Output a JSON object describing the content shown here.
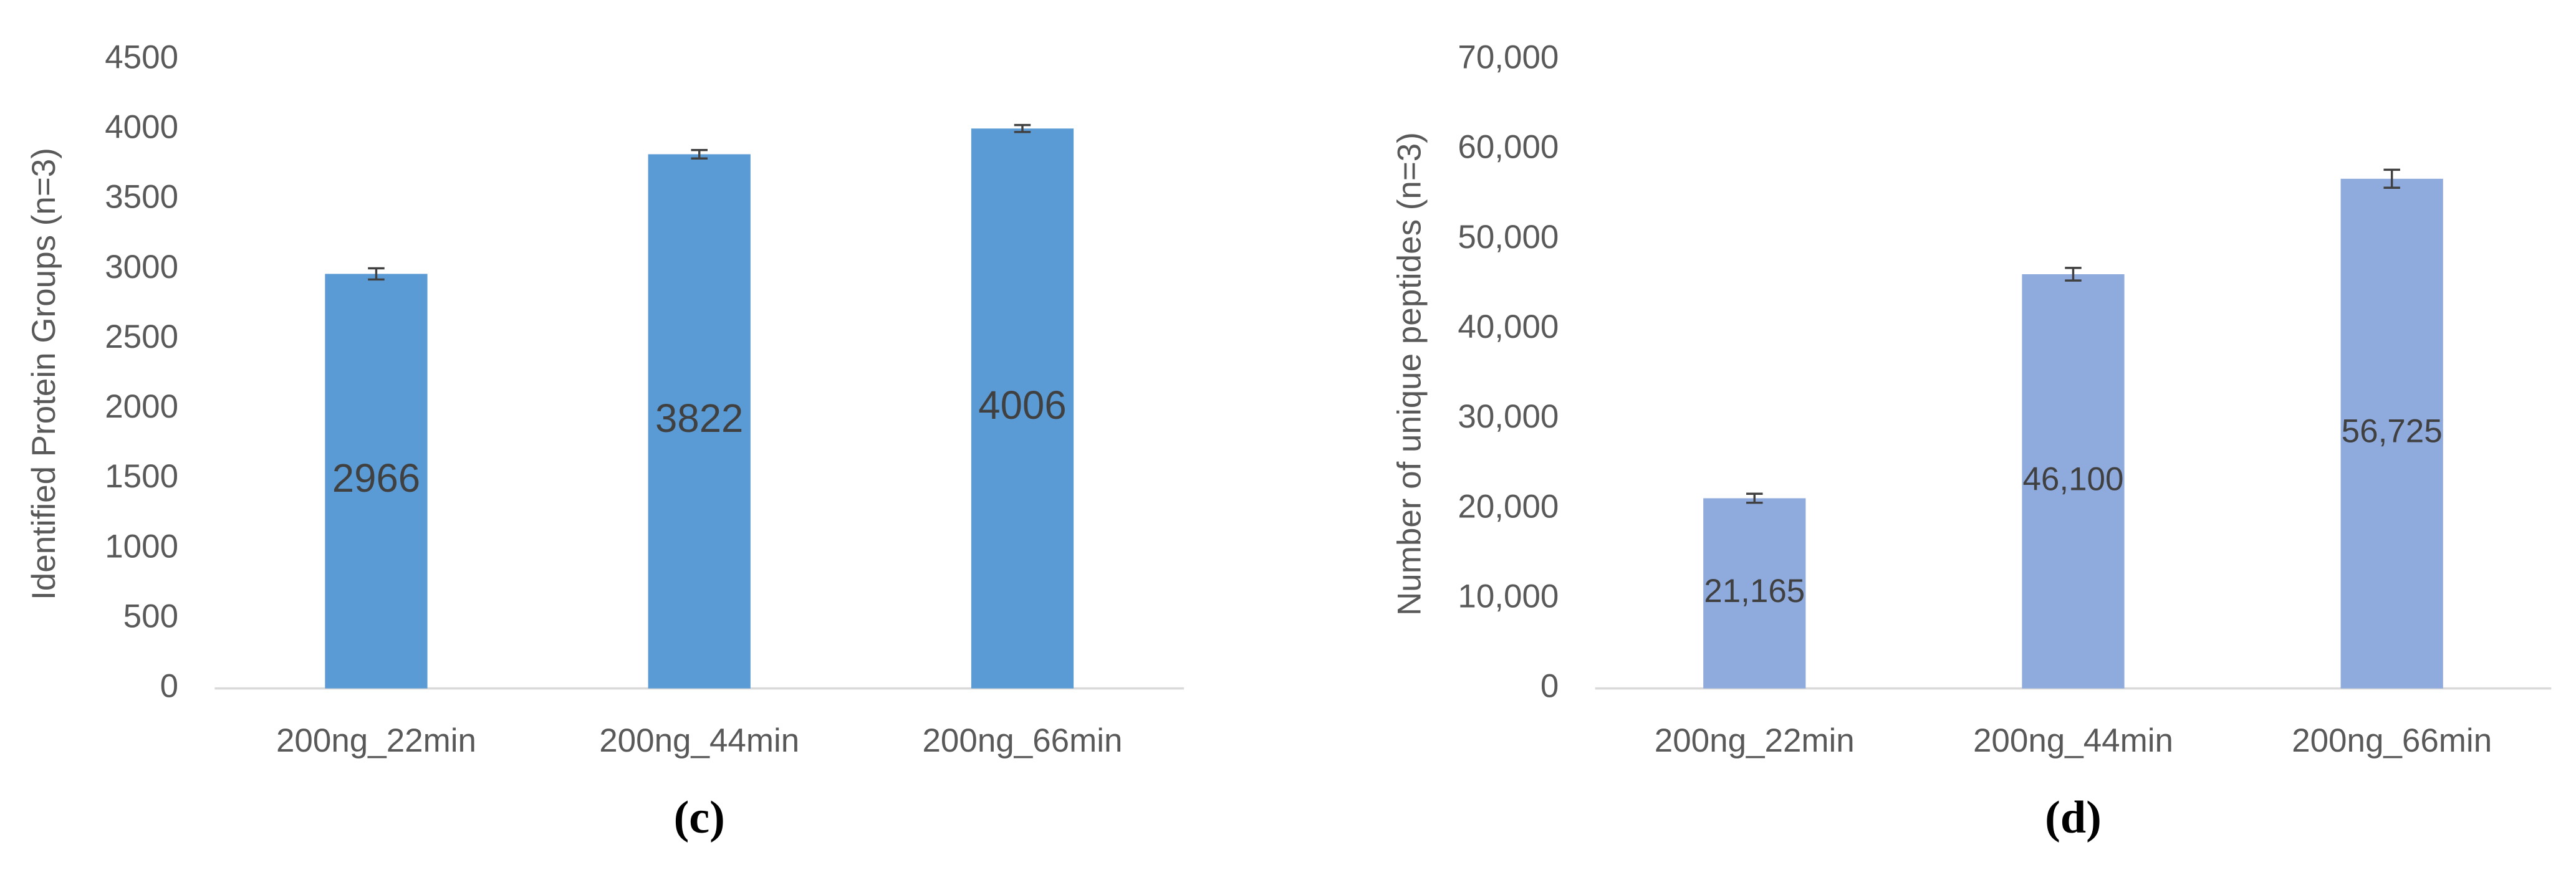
{
  "chart_data": [
    {
      "type": "bar",
      "label": "(c)",
      "y_label": "Identified Protein Groups (n=3)",
      "categories": [
        "200ng_22min",
        "200ng_44min",
        "200ng_66min"
      ],
      "values": [
        2966,
        3822,
        4006
      ],
      "errors": [
        40,
        30,
        25
      ],
      "color": "#5b9bd5",
      "ylim": [
        0,
        4500
      ],
      "yticks": [
        0,
        500,
        1000,
        1500,
        2000,
        2500,
        3000,
        3500,
        4000,
        4500
      ],
      "grid": false
    },
    {
      "type": "bar",
      "label": "(d)",
      "y_label": "Number of unique peptides (n=3)",
      "categories": [
        "200ng_22min",
        "200ng_44min",
        "200ng_66min"
      ],
      "values": [
        21165,
        46100,
        56725
      ],
      "value_labels": [
        "21,165",
        "46,100",
        "56,725"
      ],
      "errors": [
        500,
        700,
        1000
      ],
      "color": "#8faadc",
      "ylim": [
        0,
        70000
      ],
      "yticks": [
        0,
        {
          "value": 10000,
          "label": "10,000"
        },
        {
          "value": 20000,
          "label": "20,000"
        },
        {
          "value": 30000,
          "label": "30,000"
        },
        {
          "value": 40000,
          "label": "40,000"
        },
        {
          "value": 50000,
          "label": "50,000"
        },
        {
          "value": 60000,
          "label": "60,000"
        },
        {
          "value": 70000,
          "label": "70,000"
        }
      ],
      "grid": false
    }
  ]
}
